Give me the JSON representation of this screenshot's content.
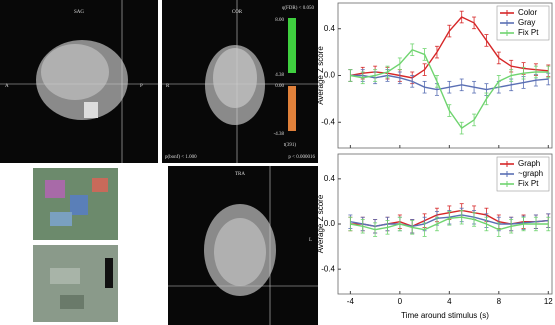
{
  "panels": {
    "sag": {
      "title": "SAG",
      "left": "A",
      "right": "P"
    },
    "cor": {
      "title": "COR",
      "left": "R",
      "scale_title": "q(FDR) < 0.050",
      "scale_labels": [
        "8.00",
        "4.38",
        "0.00",
        "-4.38"
      ],
      "scale_foot": "t(391)",
      "foot_left": "p(bonf) < 1.000",
      "foot_right": "p < 0.000016"
    },
    "tra": {
      "title": "TRA",
      "right": "L"
    }
  },
  "chart_data": [
    {
      "type": "line",
      "ylabel": "Average Z score",
      "legend": "top-right",
      "x": [
        -4,
        -3,
        -2,
        -1,
        0,
        1,
        2,
        3,
        4,
        5,
        6,
        7,
        8,
        9,
        10,
        11,
        12
      ],
      "xlim": [
        -5,
        12.3
      ],
      "xticks": [
        -4,
        0,
        4,
        8,
        12
      ],
      "ylim": [
        -0.62,
        0.62
      ],
      "yticks": [
        -0.4,
        {
          "value": 0,
          "label": "0.0"
        },
        0.4
      ],
      "series": [
        {
          "name": "Color",
          "color": "#d62728",
          "error": 0.05,
          "values": [
            0.0,
            0.02,
            0.03,
            0.02,
            0.0,
            -0.02,
            0.05,
            0.2,
            0.38,
            0.5,
            0.45,
            0.3,
            0.15,
            0.08,
            0.06,
            0.05,
            0.04
          ]
        },
        {
          "name": "Gray",
          "color": "#5a6fb4",
          "error": 0.05,
          "values": [
            0.0,
            0.0,
            -0.02,
            0.0,
            -0.02,
            -0.05,
            -0.1,
            -0.12,
            -0.1,
            -0.08,
            -0.1,
            -0.12,
            -0.1,
            -0.08,
            -0.06,
            -0.04,
            -0.03
          ]
        },
        {
          "name": "Fix Pt",
          "color": "#6fd46f",
          "error": 0.05,
          "values": [
            0.0,
            -0.02,
            0.0,
            0.03,
            0.1,
            0.22,
            0.18,
            -0.05,
            -0.3,
            -0.45,
            -0.38,
            -0.2,
            -0.05,
            0.0,
            0.02,
            0.03,
            0.03
          ]
        }
      ]
    },
    {
      "type": "line",
      "ylabel": "Average Z score",
      "xlabel": "Time around stimulus (s)",
      "legend": "top-right",
      "x": [
        -4,
        -3,
        -2,
        -1,
        0,
        1,
        2,
        3,
        4,
        5,
        6,
        7,
        8,
        9,
        10,
        11,
        12
      ],
      "xlim": [
        -5,
        12.3
      ],
      "xticks": [
        -4,
        0,
        4,
        8,
        12
      ],
      "ylim": [
        -0.62,
        0.62
      ],
      "yticks": [
        -0.4,
        {
          "value": 0,
          "label": "0.0"
        },
        0.4
      ],
      "series": [
        {
          "name": "Graph",
          "color": "#d62728",
          "error": 0.06,
          "values": [
            0.0,
            0.0,
            -0.02,
            0.0,
            0.02,
            -0.02,
            0.03,
            0.08,
            0.1,
            0.12,
            0.1,
            0.08,
            0.02,
            0.0,
            0.02,
            0.02,
            0.03
          ]
        },
        {
          "name": "~graph",
          "color": "#5a6fb4",
          "error": 0.06,
          "values": [
            0.02,
            0.0,
            -0.02,
            0.0,
            0.0,
            -0.02,
            0.0,
            0.05,
            0.06,
            0.08,
            0.06,
            0.03,
            0.0,
            0.0,
            0.01,
            0.02,
            0.03
          ]
        },
        {
          "name": "Fix Pt",
          "color": "#6fd46f",
          "error": 0.06,
          "values": [
            0.0,
            -0.02,
            -0.05,
            -0.03,
            0.0,
            -0.03,
            -0.05,
            0.0,
            0.05,
            0.06,
            0.04,
            0.0,
            -0.05,
            -0.02,
            0.0,
            0.0,
            0.0
          ]
        }
      ]
    }
  ]
}
